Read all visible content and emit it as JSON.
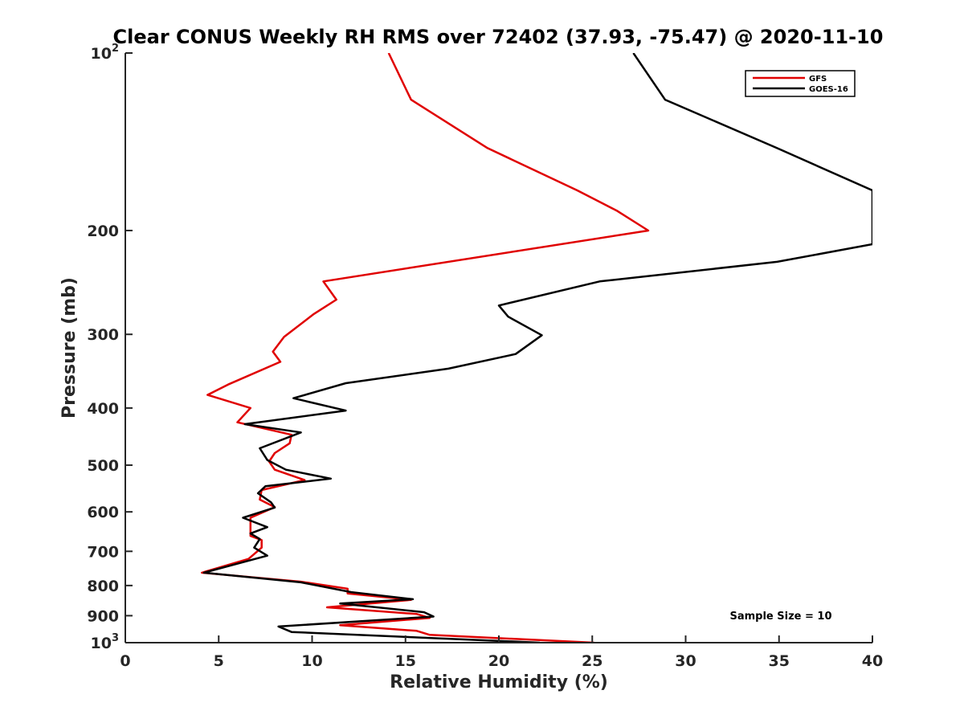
{
  "chart_data": {
    "type": "line",
    "title": "Clear CONUS Weekly RH RMS over 72402 (37.93, -75.47) @ 2020-11-10",
    "xlabel": "Relative Humidity (%)",
    "ylabel": "Pressure (mb)",
    "xlim": [
      0,
      40
    ],
    "ylim": [
      100,
      1000
    ],
    "yscale": "log",
    "y_reversed": true,
    "grid": false,
    "x_ticks": [
      0,
      5,
      10,
      15,
      20,
      25,
      30,
      35,
      40
    ],
    "x_tick_labels": [
      "0",
      "5",
      "10",
      "15",
      "20",
      "25",
      "30",
      "35",
      "40"
    ],
    "y_ticks": [
      200,
      300,
      400,
      500,
      600,
      700,
      800,
      900
    ],
    "y_tick_labels": [
      "200",
      "300",
      "400",
      "500",
      "600",
      "700",
      "800",
      "900"
    ],
    "y_edge_labels": [
      {
        "value": 100,
        "base": "10",
        "exp": "2"
      },
      {
        "value": 1000,
        "base": "10",
        "exp": "3"
      }
    ],
    "legend_position": "top-right",
    "annotation": "Sample Size = 10",
    "series": [
      {
        "name": "GFS",
        "color": "#e00000",
        "points": [
          [
            14.1,
            100
          ],
          [
            15.3,
            120
          ],
          [
            19.4,
            145
          ],
          [
            24.2,
            171
          ],
          [
            26.3,
            185
          ],
          [
            28.0,
            200
          ],
          [
            10.6,
            244
          ],
          [
            11.3,
            262
          ],
          [
            10.1,
            277
          ],
          [
            8.5,
            303
          ],
          [
            7.9,
            321
          ],
          [
            8.3,
            334
          ],
          [
            5.5,
            365
          ],
          [
            4.4,
            380
          ],
          [
            6.7,
            400
          ],
          [
            6.0,
            423
          ],
          [
            8.9,
            444
          ],
          [
            8.8,
            459
          ],
          [
            8.0,
            477
          ],
          [
            7.7,
            493
          ],
          [
            8.0,
            509
          ],
          [
            9.6,
            530
          ],
          [
            7.3,
            551
          ],
          [
            7.2,
            572
          ],
          [
            8.0,
            589
          ],
          [
            6.7,
            614
          ],
          [
            6.7,
            643
          ],
          [
            6.7,
            659
          ],
          [
            7.3,
            670
          ],
          [
            7.3,
            690
          ],
          [
            6.6,
            721
          ],
          [
            4.1,
            761
          ],
          [
            9.4,
            788
          ],
          [
            11.9,
            810
          ],
          [
            11.9,
            825
          ],
          [
            15.3,
            846
          ],
          [
            10.8,
            871
          ],
          [
            15.6,
            894
          ],
          [
            16.3,
            908
          ],
          [
            11.5,
            934
          ],
          [
            15.6,
            955
          ],
          [
            16.3,
            970
          ],
          [
            25.1,
            1000
          ]
        ]
      },
      {
        "name": "GOES-16",
        "color": "#000000",
        "points": [
          [
            27.2,
            100
          ],
          [
            28.9,
            120
          ],
          [
            34.9,
            145
          ],
          [
            40.0,
            171
          ],
          [
            40.0,
            211
          ],
          [
            34.9,
            226
          ],
          [
            25.4,
            244
          ],
          [
            20.0,
            268
          ],
          [
            20.5,
            280
          ],
          [
            22.3,
            301
          ],
          [
            20.9,
            324
          ],
          [
            17.3,
            343
          ],
          [
            11.8,
            363
          ],
          [
            9.0,
            385
          ],
          [
            11.8,
            404
          ],
          [
            6.4,
            426
          ],
          [
            9.4,
            440
          ],
          [
            7.2,
            468
          ],
          [
            7.6,
            490
          ],
          [
            8.6,
            509
          ],
          [
            11.0,
            527
          ],
          [
            7.5,
            543
          ],
          [
            7.1,
            558
          ],
          [
            7.8,
            578
          ],
          [
            8.0,
            590
          ],
          [
            6.3,
            614
          ],
          [
            7.6,
            637
          ],
          [
            6.7,
            653
          ],
          [
            7.2,
            667
          ],
          [
            6.9,
            690
          ],
          [
            7.6,
            712
          ],
          [
            4.2,
            761
          ],
          [
            9.4,
            790
          ],
          [
            12.1,
            821
          ],
          [
            15.4,
            844
          ],
          [
            11.5,
            858
          ],
          [
            16.0,
            888
          ],
          [
            16.5,
            903
          ],
          [
            8.2,
            939
          ],
          [
            8.9,
            959
          ],
          [
            22.2,
            1000
          ]
        ]
      }
    ]
  }
}
